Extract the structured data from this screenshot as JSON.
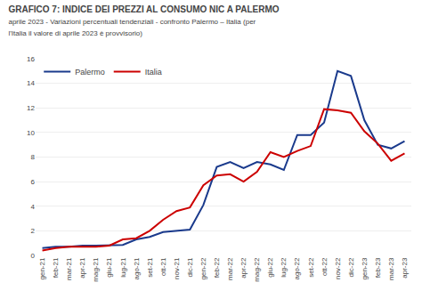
{
  "chart_data": {
    "type": "line",
    "title": "GRAFICO 7: INDICE DEI PREZZI AL CONSUMO NIC A PALERMO",
    "subtitle": "aprile 2023 - Variazioni percentuali tendenziali - confronto Palermo – Italia (per l'Italia il valore di aprile 2023 è provvisorio)",
    "categories": [
      "gen-21",
      "feb-21",
      "mar-21",
      "apr-21",
      "mag-21",
      "giu-21",
      "lug-21",
      "ago-21",
      "set-21",
      "ott-21",
      "nov-21",
      "dic-21",
      "gen-22",
      "feb-22",
      "mar-22",
      "apr-22",
      "mag-22",
      "giu-22",
      "lug-22",
      "ago-22",
      "set-22",
      "ott-22",
      "nov-22",
      "dic-22",
      "gen-23",
      "feb-23",
      "mar-23",
      "apr-23"
    ],
    "series": [
      {
        "name": "Palermo",
        "color": "#1a3a8c",
        "values": [
          0.6,
          0.7,
          0.7,
          0.8,
          0.8,
          0.85,
          0.85,
          1.3,
          1.5,
          1.9,
          2.0,
          2.1,
          4.1,
          7.2,
          7.6,
          7.1,
          7.6,
          7.4,
          6.95,
          9.8,
          9.8,
          10.8,
          15.0,
          14.6,
          11.0,
          9.0,
          8.7,
          9.3
        ]
      },
      {
        "name": "Italia",
        "color": "#cc0000",
        "values": [
          0.4,
          0.6,
          0.7,
          0.7,
          0.7,
          0.8,
          1.3,
          1.4,
          2.0,
          2.9,
          3.6,
          3.9,
          5.7,
          6.5,
          6.6,
          6.0,
          6.8,
          8.4,
          8.0,
          8.5,
          8.9,
          11.9,
          11.8,
          11.6,
          10.1,
          9.1,
          7.7,
          8.3
        ]
      }
    ],
    "ylim": [
      0,
      16
    ],
    "yticks": [
      0,
      2,
      4,
      6,
      8,
      10,
      12,
      14,
      16
    ],
    "grid": true,
    "legend": "upper left"
  }
}
